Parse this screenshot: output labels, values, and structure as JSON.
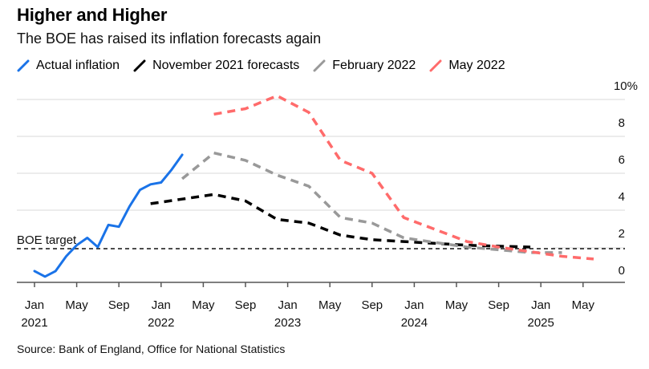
{
  "header": {
    "title": "Higher and Higher",
    "subtitle": "The BOE has raised its inflation forecasts again"
  },
  "legend": [
    {
      "label": "Actual inflation",
      "color": "#1a73e8",
      "style": "solid"
    },
    {
      "label": "November 2021 forecasts",
      "color": "#000000",
      "style": "dashed"
    },
    {
      "label": "February 2022",
      "color": "#999999",
      "style": "dashed"
    },
    {
      "label": "May 2022",
      "color": "#ff6b6b",
      "style": "dashed"
    }
  ],
  "source": "Source: Bank of England, Office for National Statistics",
  "chart_data": {
    "type": "line",
    "title": "Higher and Higher",
    "subtitle": "The BOE has raised its inflation forecasts again",
    "xlabel": "",
    "ylabel": "",
    "ylim": [
      0,
      10
    ],
    "y_ticks": [
      {
        "value": 10,
        "label": "10%"
      },
      {
        "value": 8,
        "label": "8"
      },
      {
        "value": 6,
        "label": "6"
      },
      {
        "value": 4,
        "label": "4"
      },
      {
        "value": 2,
        "label": "2"
      },
      {
        "value": 0,
        "label": "0"
      }
    ],
    "x_range_months": [
      "2020-11",
      "2025-10"
    ],
    "x_ticks": [
      {
        "date": "2021-01",
        "label": "Jan",
        "year": "2021"
      },
      {
        "date": "2021-05",
        "label": "May",
        "year": ""
      },
      {
        "date": "2021-09",
        "label": "Sep",
        "year": ""
      },
      {
        "date": "2022-01",
        "label": "Jan",
        "year": "2022"
      },
      {
        "date": "2022-05",
        "label": "May",
        "year": ""
      },
      {
        "date": "2022-09",
        "label": "Sep",
        "year": ""
      },
      {
        "date": "2023-01",
        "label": "Jan",
        "year": "2023"
      },
      {
        "date": "2023-05",
        "label": "May",
        "year": ""
      },
      {
        "date": "2023-09",
        "label": "Sep",
        "year": ""
      },
      {
        "date": "2024-01",
        "label": "Jan",
        "year": "2024"
      },
      {
        "date": "2024-05",
        "label": "May",
        "year": ""
      },
      {
        "date": "2024-09",
        "label": "Sep",
        "year": ""
      },
      {
        "date": "2025-01",
        "label": "Jan",
        "year": "2025"
      },
      {
        "date": "2025-05",
        "label": "May",
        "year": ""
      }
    ],
    "grid": true,
    "legend_position": "top-left",
    "reference_line": {
      "value": 2,
      "label": "BOE target"
    },
    "series": [
      {
        "name": "Actual inflation",
        "x": [
          "2021-01",
          "2021-02",
          "2021-03",
          "2021-04",
          "2021-05",
          "2021-06",
          "2021-07",
          "2021-08",
          "2021-09",
          "2021-10",
          "2021-11",
          "2021-12",
          "2022-01",
          "2022-02",
          "2022-03"
        ],
        "values": [
          0.7,
          0.4,
          0.7,
          1.5,
          2.1,
          2.5,
          2.0,
          3.2,
          3.1,
          4.2,
          5.1,
          5.4,
          5.5,
          6.2,
          7.0
        ]
      },
      {
        "name": "November 2021 forecasts",
        "x": [
          "2021-12",
          "2022-03",
          "2022-06",
          "2022-09",
          "2022-12",
          "2023-03",
          "2023-06",
          "2023-09",
          "2023-12",
          "2024-03",
          "2024-06",
          "2024-09",
          "2024-12"
        ],
        "values": [
          4.35,
          4.6,
          4.85,
          4.5,
          3.5,
          3.3,
          2.65,
          2.4,
          2.3,
          2.2,
          2.1,
          2.05,
          2.0
        ]
      },
      {
        "name": "February 2022",
        "x": [
          "2022-03",
          "2022-06",
          "2022-09",
          "2022-12",
          "2023-03",
          "2023-06",
          "2023-09",
          "2023-12",
          "2024-03",
          "2024-06",
          "2024-09",
          "2024-12",
          "2025-03"
        ],
        "values": [
          5.7,
          7.1,
          6.7,
          5.9,
          5.3,
          3.6,
          3.3,
          2.5,
          2.25,
          2.0,
          1.85,
          1.7,
          1.7
        ]
      },
      {
        "name": "May 2022",
        "x": [
          "2022-06",
          "2022-09",
          "2022-12",
          "2023-03",
          "2023-06",
          "2023-09",
          "2023-12",
          "2024-03",
          "2024-06",
          "2024-09",
          "2024-12",
          "2025-03",
          "2025-06"
        ],
        "values": [
          9.2,
          9.5,
          10.2,
          9.3,
          6.7,
          6.0,
          3.6,
          2.95,
          2.3,
          2.0,
          1.75,
          1.5,
          1.35
        ]
      }
    ]
  }
}
